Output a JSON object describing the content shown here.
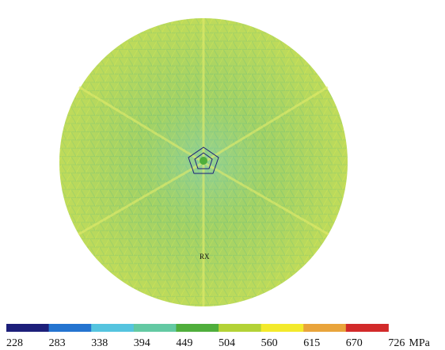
{
  "colorbar": {
    "ticks": [
      228,
      283,
      338,
      394,
      449,
      504,
      560,
      615,
      670,
      726
    ],
    "unit": "MPa",
    "colors": [
      "#1c1f7a",
      "#2474d0",
      "#55c4df",
      "#63c9a3",
      "#4fae3c",
      "#b3d236",
      "#f3ea2c",
      "#e9a43b",
      "#d22a2a"
    ]
  }
}
